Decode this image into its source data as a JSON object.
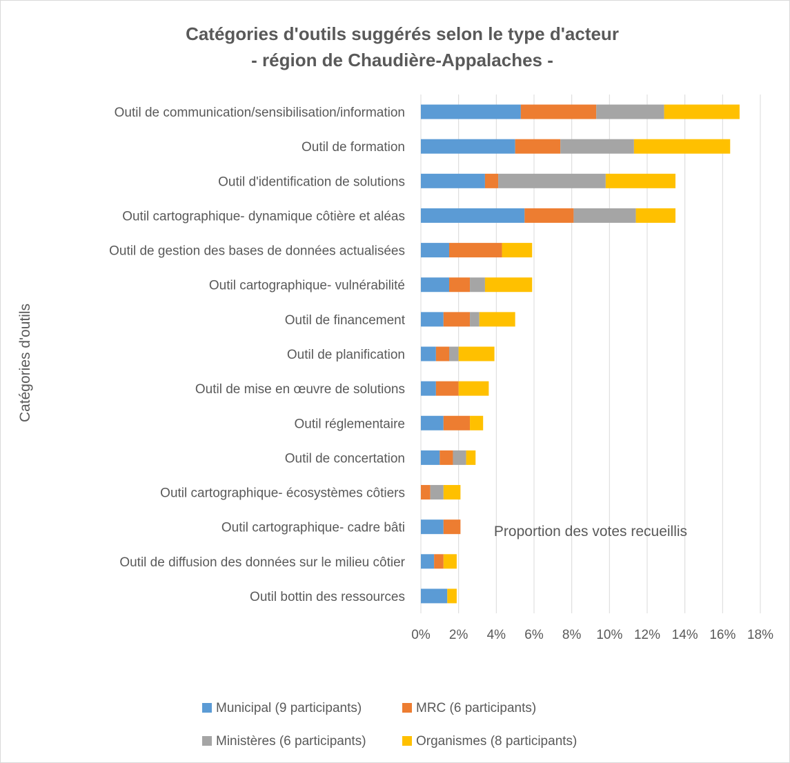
{
  "chart_data": {
    "type": "bar",
    "orientation": "horizontal",
    "stacked": true,
    "title_line1": "Catégories d'outils suggérés selon le type d'acteur",
    "title_line2": "- région de Chaudière-Appalaches -",
    "xlabel": "Proportion des votes recueillis",
    "ylabel": "Catégories d'outils",
    "xlim": [
      0,
      18
    ],
    "xticks": [
      "0%",
      "2%",
      "4%",
      "6%",
      "8%",
      "10%",
      "12%",
      "14%",
      "16%",
      "18%"
    ],
    "grid": true,
    "legend_position": "bottom",
    "categories": [
      "Outil de communication/sensibilisation/information",
      "Outil de formation",
      "Outil d'identification de solutions",
      "Outil cartographique- dynamique côtière et aléas",
      "Outil de gestion des bases de données actualisées",
      "Outil cartographique- vulnérabilité",
      "Outil de financement",
      "Outil de planification",
      "Outil de mise en œuvre de solutions",
      "Outil réglementaire",
      "Outil de concertation",
      "Outil cartographique- écosystèmes côtiers",
      "Outil cartographique- cadre bâti",
      "Outil de diffusion des données sur le milieu côtier",
      "Outil bottin des ressources"
    ],
    "series": [
      {
        "name": "Municipal (9 participants)",
        "color": "#5b9bd5",
        "values": [
          5.3,
          5.0,
          3.4,
          5.5,
          1.5,
          1.5,
          1.2,
          0.8,
          0.8,
          1.2,
          1.0,
          0.0,
          1.2,
          0.7,
          1.4
        ]
      },
      {
        "name": "MRC (6 participants)",
        "color": "#ed7d31",
        "values": [
          4.0,
          2.4,
          0.7,
          2.6,
          2.8,
          1.1,
          1.4,
          0.7,
          1.2,
          1.4,
          0.7,
          0.5,
          0.9,
          0.5,
          0.0
        ]
      },
      {
        "name": "Ministères (6 participants)",
        "color": "#a5a5a5",
        "values": [
          3.6,
          3.9,
          5.7,
          3.3,
          0.0,
          0.8,
          0.5,
          0.5,
          0.0,
          0.0,
          0.7,
          0.7,
          0.0,
          0.0,
          0.0
        ]
      },
      {
        "name": "Organismes (8 participants)",
        "color": "#ffc000",
        "values": [
          4.0,
          5.1,
          3.7,
          2.1,
          1.6,
          2.5,
          1.9,
          1.9,
          1.6,
          0.7,
          0.5,
          0.9,
          0.0,
          0.7,
          0.5
        ]
      }
    ]
  }
}
